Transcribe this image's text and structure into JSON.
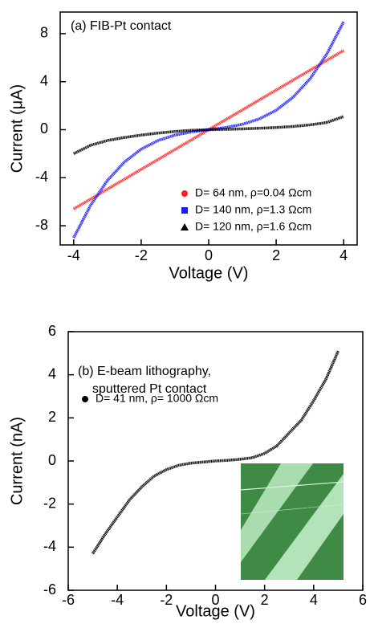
{
  "chart_data": [
    {
      "type": "line",
      "annotation": [
        "(a) FIB-Pt contact"
      ],
      "xlabel": "Voltage (V)",
      "ylabel": "Current (μA)",
      "x": [
        -4,
        -3.5,
        -3,
        -2.5,
        -2,
        -1.5,
        -1,
        -0.5,
        0,
        0.5,
        1,
        1.5,
        2,
        2.5,
        3,
        3.5,
        4
      ],
      "series": [
        {
          "name": "D= 64 nm, ρ=0.04 Ωcm",
          "color": "#ff2020",
          "marker": "circle",
          "values": [
            -6.6,
            -5.78,
            -4.95,
            -4.13,
            -3.3,
            -2.48,
            -1.65,
            -0.83,
            0,
            0.83,
            1.65,
            2.48,
            3.3,
            4.13,
            4.95,
            5.78,
            6.6
          ]
        },
        {
          "name": "D= 140 nm, ρ=1.3 Ωcm",
          "color": "#1a1aff",
          "marker": "square",
          "values": [
            -9.0,
            -6.3,
            -4.23,
            -2.7,
            -1.62,
            -0.9,
            -0.45,
            -0.18,
            0,
            0.18,
            0.45,
            0.9,
            1.62,
            2.7,
            4.23,
            6.3,
            9.0
          ]
        },
        {
          "name": "D= 120 nm, ρ=1.6 Ωcm",
          "color": "#000000",
          "marker": "triangle",
          "values": [
            -2.0,
            -1.3,
            -0.9,
            -0.65,
            -0.45,
            -0.28,
            -0.15,
            -0.05,
            0,
            0.03,
            0.07,
            0.12,
            0.18,
            0.27,
            0.4,
            0.6,
            1.1
          ]
        }
      ],
      "xlim": [
        -4.4,
        4.4
      ],
      "xticks": [
        -4,
        -2,
        0,
        2,
        4
      ],
      "ylim": [
        -9.6,
        9.8
      ],
      "yticks": [
        -8,
        -4,
        0,
        4,
        8
      ],
      "legend": "lower right"
    },
    {
      "type": "line",
      "annotation": [
        "(b) E-beam lithography,",
        "sputtered Pt contact"
      ],
      "xlabel": "Voltage (V)",
      "ylabel": "Current (nA)",
      "x": [
        -5,
        -4.5,
        -4,
        -3.5,
        -3,
        -2.5,
        -2,
        -1.5,
        -1,
        -0.5,
        0,
        0.5,
        1,
        1.5,
        2,
        2.5,
        3,
        3.5,
        4,
        4.5,
        5
      ],
      "series": [
        {
          "name": "D= 41 nm, ρ= 1000 Ωcm",
          "color": "#000000",
          "marker": "circle",
          "values": [
            -4.3,
            -3.4,
            -2.6,
            -1.8,
            -1.2,
            -0.7,
            -0.4,
            -0.2,
            -0.1,
            -0.05,
            0,
            0.03,
            0.08,
            0.15,
            0.35,
            0.7,
            1.3,
            1.9,
            2.8,
            3.8,
            5.1
          ]
        }
      ],
      "xlim": [
        -6,
        6
      ],
      "xticks": [
        -6,
        -4,
        -2,
        0,
        2,
        4,
        6
      ],
      "ylim": [
        -6,
        6
      ],
      "yticks": [
        -6,
        -4,
        -2,
        0,
        2,
        4,
        6
      ],
      "legend": "upper left"
    }
  ]
}
